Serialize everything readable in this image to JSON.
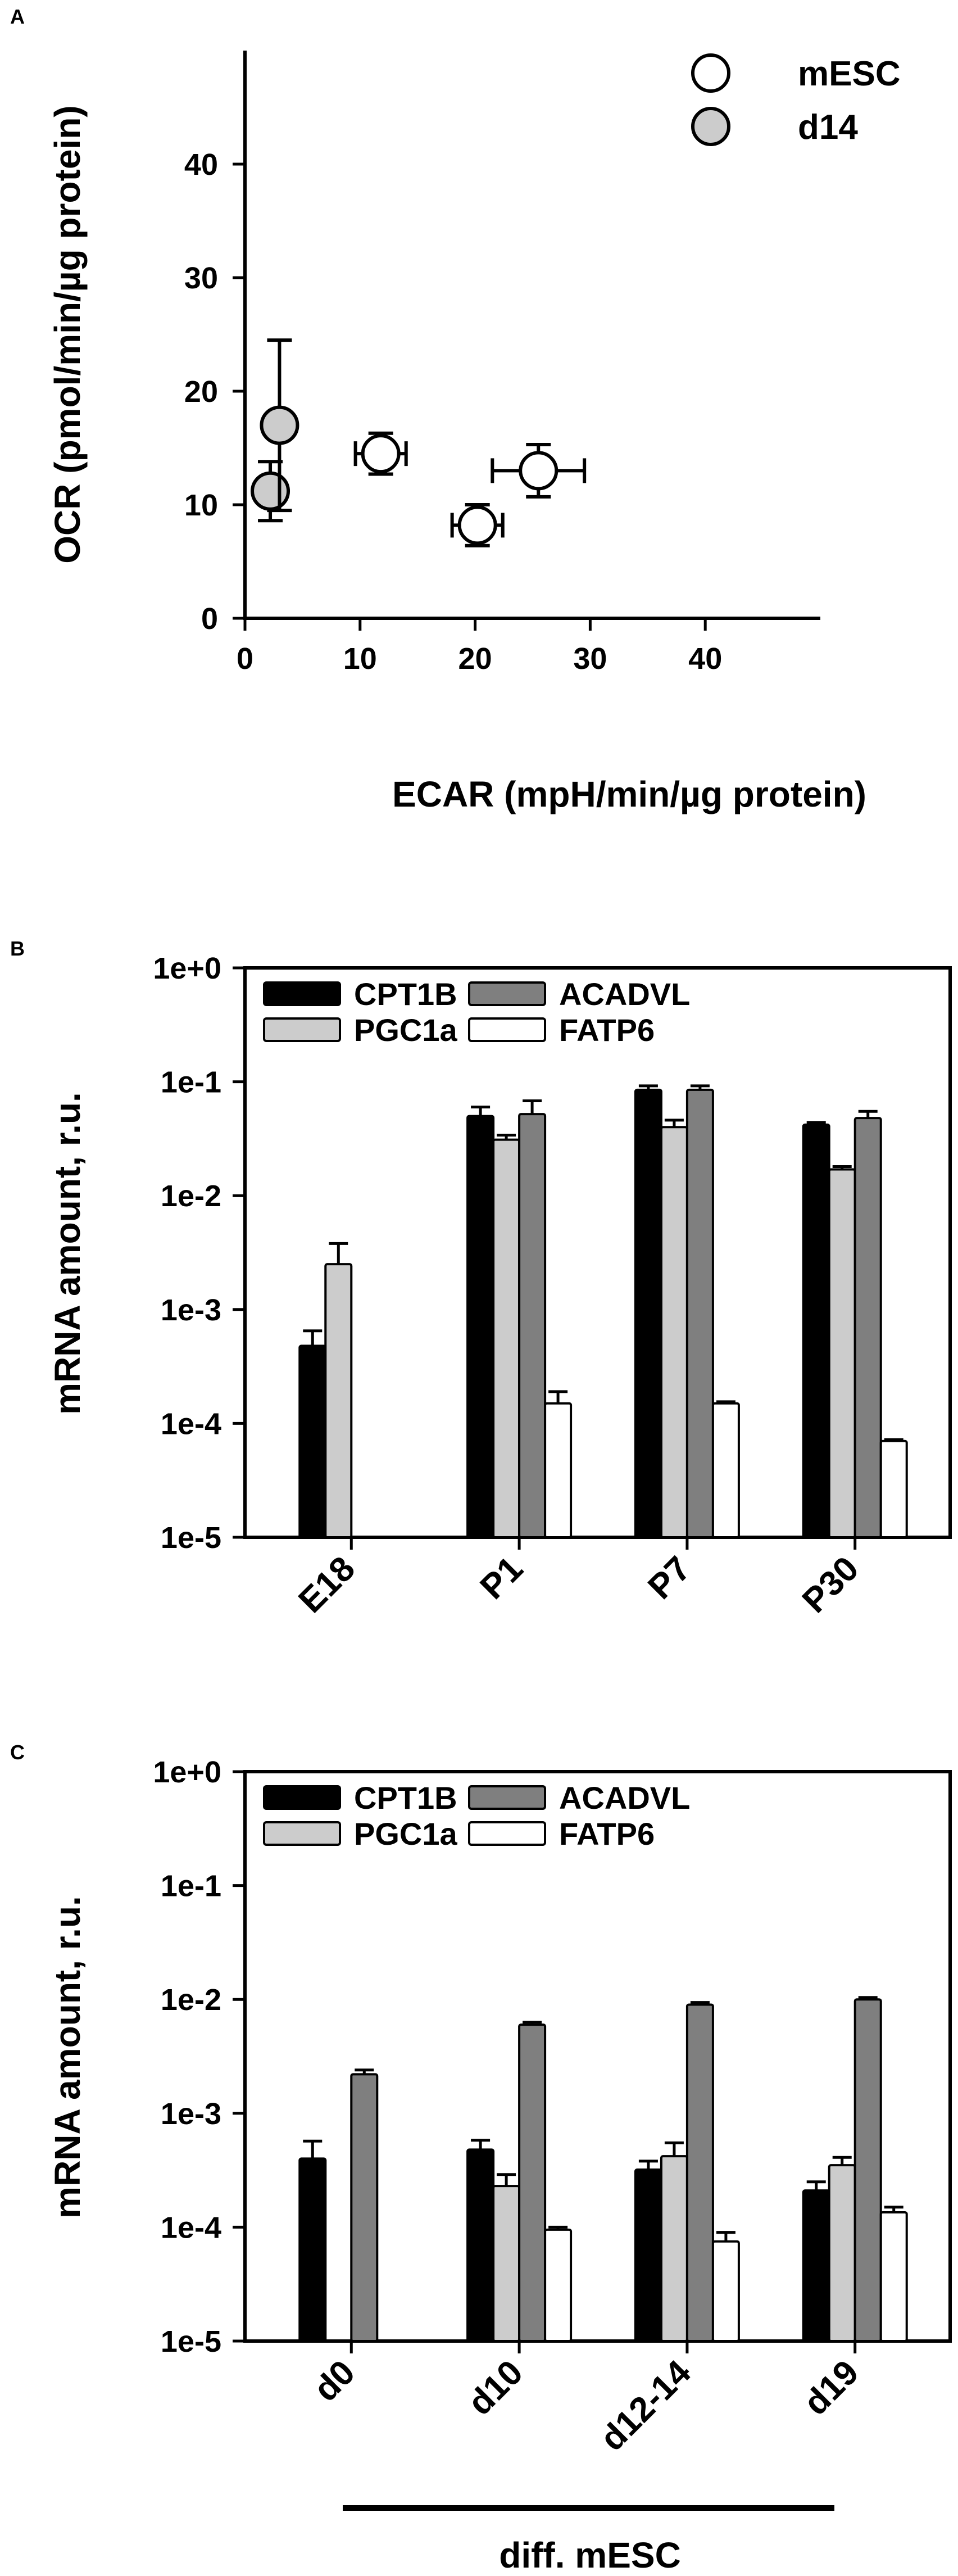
{
  "chart_data": [
    {
      "panel": "A",
      "type": "scatter",
      "xlabel": "ECAR (mpH/min/µg protein)",
      "ylabel": "OCR (pmol/min/µg protein)",
      "xlim": [
        0,
        50
      ],
      "ylim": [
        0,
        50
      ],
      "xticks": [
        "0",
        "10",
        "20",
        "30",
        "40"
      ],
      "yticks": [
        "0",
        "10",
        "20",
        "30",
        "40"
      ],
      "legend_position": "top-right",
      "series": [
        {
          "name": "mESC",
          "color": "#ffffff",
          "points": [
            {
              "x": 11.8,
              "y": 14.5,
              "xerr": 2.2,
              "yerr": 1.8
            },
            {
              "x": 20.2,
              "y": 8.2,
              "xerr": 2.2,
              "yerr": 1.8
            },
            {
              "x": 25.5,
              "y": 13.0,
              "xerr": 4.0,
              "yerr": 2.3
            }
          ]
        },
        {
          "name": "d14",
          "color": "#cccccc",
          "points": [
            {
              "x": 2.2,
              "y": 11.2,
              "xerr": 0,
              "yerr": 2.6
            },
            {
              "x": 3.0,
              "y": 17.0,
              "xerr": 0,
              "yerr": 7.5
            }
          ]
        }
      ]
    },
    {
      "panel": "B",
      "type": "bar",
      "yscale": "log",
      "ylabel": "mRNA amount, r.u.",
      "xlabel": "",
      "ylim": [
        1e-05,
        1
      ],
      "yticks": [
        "1e-5",
        "1e-4",
        "1e-3",
        "1e-2",
        "1e-1",
        "1e+0"
      ],
      "categories": [
        "E18",
        "P1",
        "P7",
        "P30"
      ],
      "legend_position": "top",
      "series": [
        {
          "name": "CPT1B",
          "color": "#000000",
          "values": [
            0.00048,
            0.05,
            0.085,
            0.042
          ],
          "errors": [
            0.00065,
            0.06,
            0.092,
            0.044
          ]
        },
        {
          "name": "PGC1a",
          "color": "#cccccc",
          "values": [
            0.0025,
            0.031,
            0.04,
            0.017
          ],
          "errors": [
            0.0038,
            0.034,
            0.046,
            0.018
          ]
        },
        {
          "name": "ACADVL",
          "color": "#7f7f7f",
          "values": [
            null,
            0.052,
            0.085,
            0.048
          ],
          "errors": [
            null,
            0.068,
            0.092,
            0.055
          ]
        },
        {
          "name": "FATP6",
          "color": "#ffffff",
          "values": [
            null,
            0.00015,
            0.00015,
            7e-05
          ],
          "errors": [
            null,
            0.00019,
            0.000155,
            7.2e-05
          ]
        }
      ]
    },
    {
      "panel": "C",
      "type": "bar",
      "yscale": "log",
      "ylabel": "mRNA amount, r.u.",
      "xlabel": "diff. mESC",
      "ylim": [
        1e-05,
        1
      ],
      "yticks": [
        "1e-5",
        "1e-4",
        "1e-3",
        "1e-2",
        "1e-1",
        "1e+0"
      ],
      "categories": [
        "d0",
        "d10",
        "d12-14",
        "d19"
      ],
      "legend_position": "top",
      "series": [
        {
          "name": "CPT1B",
          "color": "#000000",
          "values": [
            0.0004,
            0.00048,
            0.00032,
            0.00021
          ],
          "errors": [
            0.00057,
            0.00058,
            0.00038,
            0.00025
          ]
        },
        {
          "name": "PGC1a",
          "color": "#cccccc",
          "values": [
            null,
            0.00023,
            0.00042,
            0.00035
          ],
          "errors": [
            null,
            0.00029,
            0.00055,
            0.00041
          ]
        },
        {
          "name": "ACADVL",
          "color": "#7f7f7f",
          "values": [
            0.0022,
            0.006,
            0.009,
            0.01
          ],
          "errors": [
            0.0024,
            0.0063,
            0.0094,
            0.0104
          ]
        },
        {
          "name": "FATP6",
          "color": "#ffffff",
          "values": [
            null,
            9.5e-05,
            7.5e-05,
            0.000135
          ],
          "errors": [
            null,
            0.0001,
            9e-05,
            0.00015
          ]
        }
      ]
    }
  ]
}
